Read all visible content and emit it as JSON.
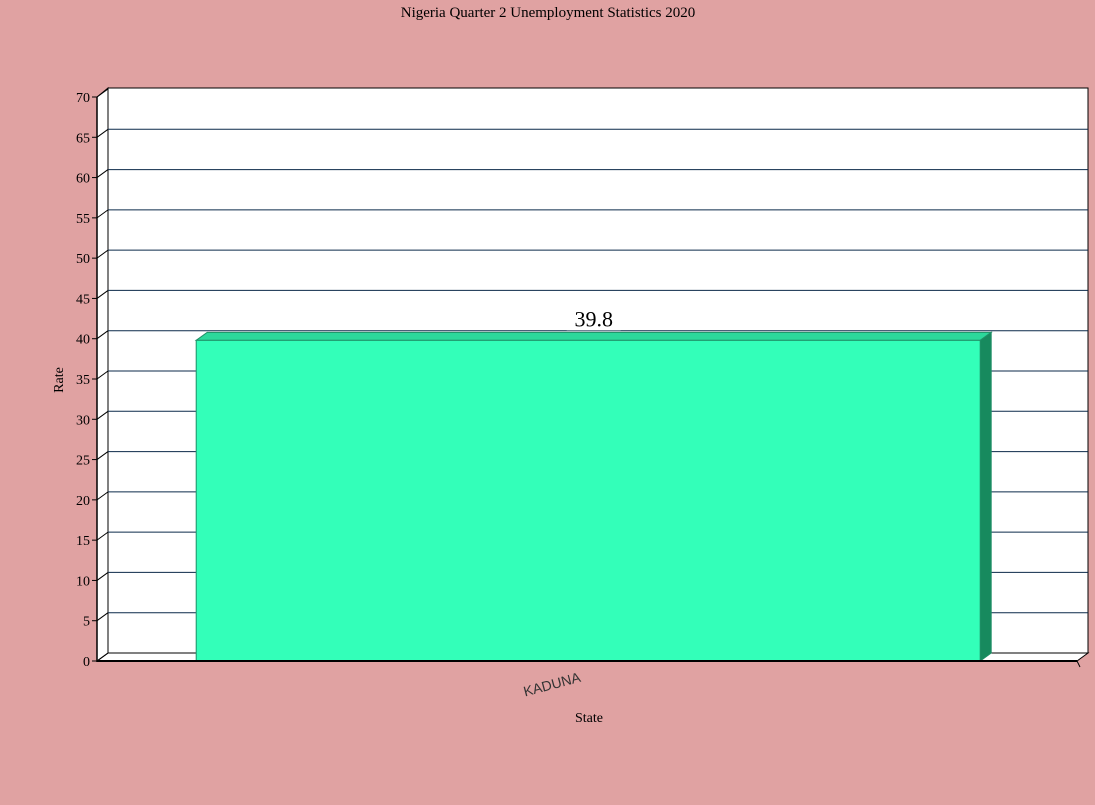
{
  "chart_data": {
    "type": "bar",
    "title": "Nigeria Quarter 2 Unemployment Statistics 2020",
    "xlabel": "State",
    "ylabel": "Rate",
    "categories": [
      "KADUNA"
    ],
    "values": [
      39.8
    ],
    "data_labels": [
      "39.8"
    ],
    "ylim": [
      0,
      70
    ],
    "yticks": [
      0,
      5,
      10,
      15,
      20,
      25,
      30,
      35,
      40,
      45,
      50,
      55,
      60,
      65,
      70
    ],
    "grid": true,
    "legend": "none",
    "style": "3d",
    "colors": {
      "background": "#e0a2a2",
      "plot_background": "#ffffff",
      "gridline": "#0b2a4a",
      "bar_front": "#33ffb9",
      "bar_top": "#2cd89b",
      "bar_side": "#178a5e",
      "bar_outline": "#1f8f66"
    }
  }
}
